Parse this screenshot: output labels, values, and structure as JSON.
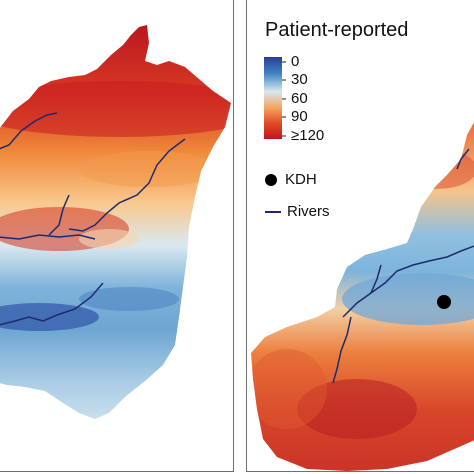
{
  "legend": {
    "title": "Patient-reported",
    "ticks": [
      "0",
      "30",
      "60",
      "90",
      "≥120"
    ],
    "color_stops": [
      "#2b3d96",
      "#3f83c2",
      "#d6e7f1",
      "#f5a55f",
      "#e14f2a",
      "#c3121d"
    ]
  },
  "symbols": {
    "facility_label": "KDH",
    "river_label": "Rivers",
    "facility_color": "#000000",
    "river_color": "#1f2a6e"
  }
}
